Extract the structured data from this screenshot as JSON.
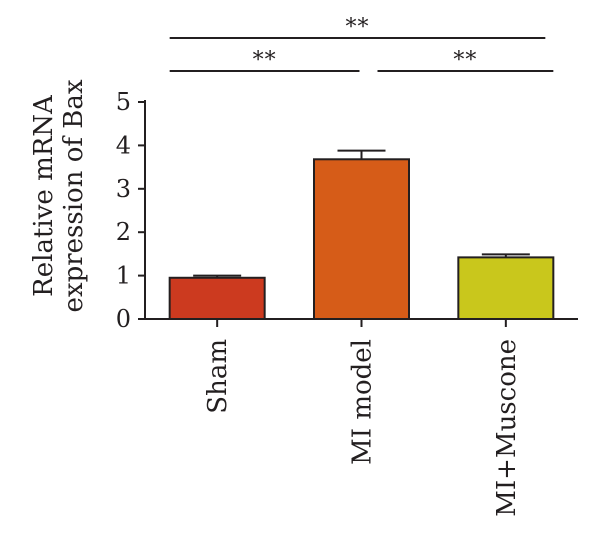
{
  "chart_data": {
    "type": "bar",
    "ylabel_lines": [
      "Relative mRNA",
      "expression of Bax"
    ],
    "ylim": [
      0,
      5
    ],
    "yticks": [
      0,
      1,
      2,
      3,
      4,
      5
    ],
    "categories": [
      "Sham",
      "MI model",
      "MI+Muscone"
    ],
    "values": [
      0.95,
      3.68,
      1.42
    ],
    "errors": [
      0.05,
      0.2,
      0.07
    ],
    "colors": [
      "#cc3a1f",
      "#d65c18",
      "#c9c71c"
    ],
    "significance": [
      {
        "from": 0,
        "to": 2,
        "label": "**"
      },
      {
        "from": 0,
        "to": 1,
        "label": "**"
      },
      {
        "from": 1,
        "to": 2,
        "label": "**"
      }
    ]
  }
}
